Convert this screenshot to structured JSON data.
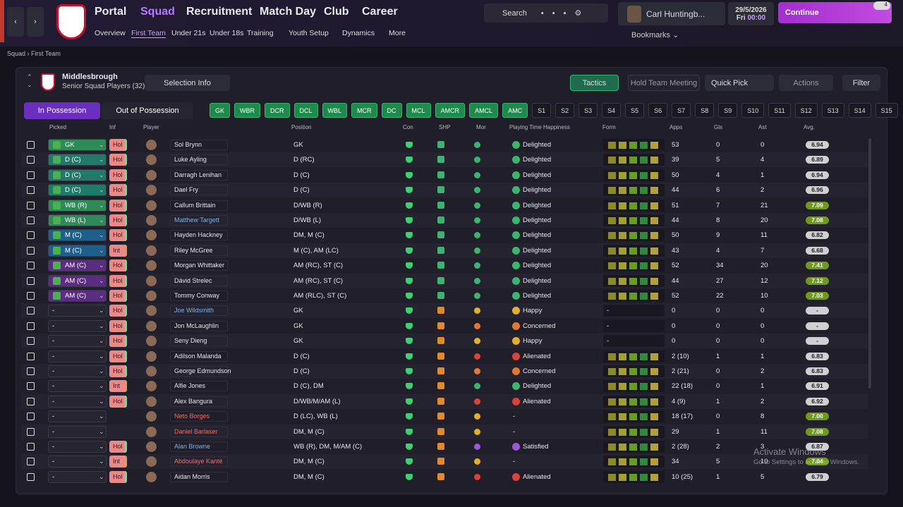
{
  "nav": {
    "main": [
      "Portal",
      "Squad",
      "Recruitment",
      "Match Day",
      "Club",
      "Career"
    ],
    "sub": [
      "Overview",
      "First Team",
      "Under 21s",
      "Under 18s",
      "Training",
      "Youth Setup",
      "Dynamics",
      "More"
    ],
    "search": "Search",
    "manager": "Carl Huntingb...",
    "date": "29/5/2026",
    "day": "Fri",
    "time": "00:00",
    "continue": "Continue",
    "badge": "4",
    "bookmarks": "Bookmarks"
  },
  "breadcrumb": [
    "Squad",
    "First Team"
  ],
  "header": {
    "club": "Middlesbrough",
    "subtitle": "Senior Squad Players (32)",
    "selection_info": "Selection Info",
    "tactics": "Tactics",
    "meeting": "Hold Team Meeting",
    "quick_pick": "Quick Pick",
    "actions": "Actions",
    "filter": "Filter",
    "in_possession": "In Possession",
    "out_of_possession": "Out of Possession"
  },
  "positions": [
    "GK",
    "WBR",
    "DCR",
    "DCL",
    "WBL",
    "MCR",
    "DC",
    "MCL",
    "AMCR",
    "AMCL",
    "AMC"
  ],
  "subs": [
    "S1",
    "S2",
    "S3",
    "S4",
    "S5",
    "S6",
    "S7",
    "S8",
    "S9",
    "S10",
    "S11",
    "S12",
    "S13",
    "S14",
    "S15"
  ],
  "table": {
    "columns": [
      "Picked",
      "Inf",
      "Player",
      "Position",
      "Con",
      "SHP",
      "Mor",
      "Playing Time Happiness",
      "Form",
      "Apps",
      "Gls",
      "Ast",
      "Avg."
    ],
    "rows": [
      {
        "picked": "GK",
        "picked_color": "#2e8b57",
        "inf": "Hol",
        "name": "Sol Brynn",
        "position": "GK",
        "happiness": "Delighted",
        "happiness_color": "#3cb371",
        "apps": "53",
        "gls": "0",
        "ast": "0",
        "avg": "6.94"
      },
      {
        "picked": "D (C)",
        "picked_color": "#1f7a6a",
        "inf": "Hol",
        "name": "Luke Ayling",
        "position": "D (RC)",
        "happiness": "Delighted",
        "happiness_color": "#3cb371",
        "apps": "39",
        "gls": "5",
        "ast": "4",
        "avg": "6.89"
      },
      {
        "picked": "D (C)",
        "picked_color": "#1f7a6a",
        "inf": "Hol",
        "name": "Darragh Lenihan",
        "position": "D (C)",
        "happiness": "Delighted",
        "happiness_color": "#3cb371",
        "apps": "50",
        "gls": "4",
        "ast": "1",
        "avg": "6.94"
      },
      {
        "picked": "D (C)",
        "picked_color": "#1f7a6a",
        "inf": "Hol",
        "name": "Dael Fry",
        "position": "D (C)",
        "happiness": "Delighted",
        "happiness_color": "#3cb371",
        "apps": "44",
        "gls": "6",
        "ast": "2",
        "avg": "6.96"
      },
      {
        "picked": "WB (R)",
        "picked_color": "#2e8b57",
        "inf": "Hol",
        "name": "Callum Brittain",
        "position": "D/WB (R)",
        "happiness": "Delighted",
        "happiness_color": "#3cb371",
        "apps": "51",
        "gls": "7",
        "ast": "21",
        "avg": "7.09"
      },
      {
        "picked": "WB (L)",
        "picked_color": "#2e8b57",
        "inf": "Hol",
        "name": "Matthew Targett",
        "color": "#7fb3e6",
        "position": "D/WB (L)",
        "happiness": "Delighted",
        "happiness_color": "#3cb371",
        "apps": "44",
        "gls": "8",
        "ast": "20",
        "avg": "7.08"
      },
      {
        "picked": "M (C)",
        "picked_color": "#1f5f8b",
        "inf": "Hol",
        "name": "Hayden Hackney",
        "position": "DM, M (C)",
        "happiness": "Delighted",
        "happiness_color": "#3cb371",
        "apps": "50",
        "gls": "9",
        "ast": "11",
        "avg": "6.82"
      },
      {
        "picked": "M (C)",
        "picked_color": "#1f5f8b",
        "inf": "Int",
        "name": "Riley McGree",
        "position": "M (C), AM (LC)",
        "happiness": "Delighted",
        "happiness_color": "#3cb371",
        "apps": "43",
        "gls": "4",
        "ast": "7",
        "avg": "6.68"
      },
      {
        "picked": "AM (C)",
        "picked_color": "#5a2d82",
        "inf": "Hol",
        "name": "Morgan Whittaker",
        "position": "AM (RC), ST (C)",
        "happiness": "Delighted",
        "happiness_color": "#3cb371",
        "apps": "52",
        "gls": "34",
        "ast": "20",
        "avg": "7.41"
      },
      {
        "picked": "AM (C)",
        "picked_color": "#5a2d82",
        "inf": "Hol",
        "name": "Dávid Strelec",
        "position": "AM (RC), ST (C)",
        "happiness": "Delighted",
        "happiness_color": "#3cb371",
        "apps": "44",
        "gls": "27",
        "ast": "12",
        "avg": "7.12"
      },
      {
        "picked": "AM (C)",
        "picked_color": "#5a2d82",
        "inf": "Hol",
        "name": "Tommy Conway",
        "position": "AM (RLC), ST (C)",
        "happiness": "Delighted",
        "happiness_color": "#3cb371",
        "apps": "52",
        "gls": "22",
        "ast": "10",
        "avg": "7.03"
      },
      {
        "picked": "-",
        "inf": "Hol",
        "name": "Joe Wildsmith",
        "color": "#7fb3e6",
        "position": "GK",
        "happiness": "Happy",
        "happiness_color": "#e0b030",
        "form": "-",
        "apps": "0",
        "gls": "0",
        "ast": "0",
        "avg": "-"
      },
      {
        "picked": "-",
        "inf": "Hol",
        "name": "Jon McLaughlin",
        "position": "GK",
        "happiness": "Concerned",
        "happiness_color": "#e07a30",
        "form": "-",
        "apps": "0",
        "gls": "0",
        "ast": "0",
        "avg": "-"
      },
      {
        "picked": "-",
        "inf": "Hol",
        "name": "Seny Dieng",
        "position": "GK",
        "happiness": "Happy",
        "happiness_color": "#e0b030",
        "form": "-",
        "apps": "0",
        "gls": "0",
        "ast": "0",
        "avg": "-"
      },
      {
        "picked": "-",
        "inf": "Hol",
        "name": "Adilson Malanda",
        "position": "D (C)",
        "happiness": "Alienated",
        "happiness_color": "#d9443a",
        "apps": "2 (10)",
        "gls": "1",
        "ast": "1",
        "avg": "6.83"
      },
      {
        "picked": "-",
        "inf": "Hol",
        "name": "George Edmundson",
        "position": "D (C)",
        "happiness": "Concerned",
        "happiness_color": "#e07a30",
        "apps": "2 (21)",
        "gls": "0",
        "ast": "2",
        "avg": "6.83"
      },
      {
        "picked": "-",
        "inf": "Int",
        "name": "Alfie Jones",
        "position": "D (C), DM",
        "happiness": "Delighted",
        "happiness_color": "#3cb371",
        "apps": "22 (18)",
        "gls": "0",
        "ast": "1",
        "avg": "6.91"
      },
      {
        "picked": "-",
        "inf": "Hol",
        "name": "Alex Bangura",
        "position": "D/WB/M/AM (L)",
        "happiness": "Alienated",
        "happiness_color": "#d9443a",
        "apps": "4 (9)",
        "gls": "1",
        "ast": "2",
        "avg": "6.92"
      },
      {
        "picked": "-",
        "name": "Neto Borges",
        "color": "#e57373",
        "position": "D (LC), WB (L)",
        "happiness": "-",
        "apps": "18 (17)",
        "gls": "0",
        "ast": "8",
        "avg": "7.00"
      },
      {
        "picked": "-",
        "name": "Daniel Barlaser",
        "color": "#e57373",
        "position": "DM, M (C)",
        "happiness": "-",
        "apps": "29",
        "gls": "1",
        "ast": "11",
        "avg": "7.08"
      },
      {
        "picked": "-",
        "inf": "Hol",
        "name": "Alan Browne",
        "color": "#7fb3e6",
        "position": "WB (R), DM, M/AM (C)",
        "happiness": "Satisfied",
        "happiness_color": "#9b59d0",
        "apps": "2 (28)",
        "gls": "2",
        "ast": "3",
        "avg": "6.87"
      },
      {
        "picked": "-",
        "inf": "Int",
        "name": "Abdoulaye Kanté",
        "color": "#e57373",
        "position": "DM, M (C)",
        "happiness": "-",
        "apps": "34",
        "gls": "5",
        "ast": "10",
        "avg": "7.04"
      },
      {
        "picked": "-",
        "inf": "Hol",
        "name": "Aidan Morris",
        "position": "DM, M (C)",
        "happiness": "Alienated",
        "happiness_color": "#d9443a",
        "apps": "10 (25)",
        "gls": "1",
        "ast": "5",
        "avg": "6.79"
      }
    ]
  },
  "watermark": {
    "title": "Activate Windows",
    "text": "Go to Settings to activate Windows."
  }
}
